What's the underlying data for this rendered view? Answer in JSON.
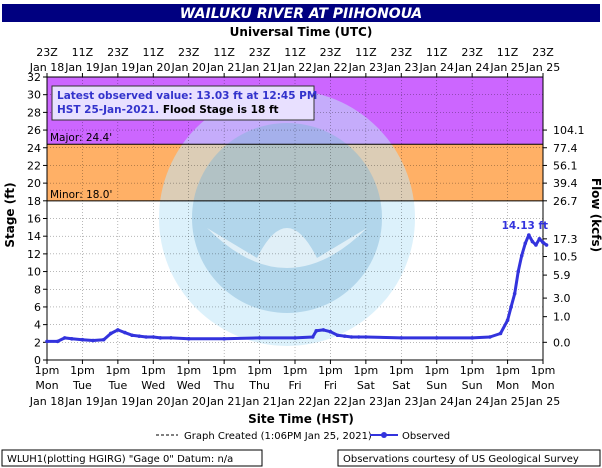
{
  "title": "WAILUKU RIVER AT PIIHONOUA",
  "top_axis_title": "Universal Time (UTC)",
  "bottom_axis_title": "Site Time (HST)",
  "left_axis_title": "Stage (ft)",
  "right_axis_title": "Flow (kcfs)",
  "info_box": {
    "line1": "Latest observed value: 13.03 ft at 12:45 PM",
    "line2_a": "HST 25-Jan-2021.",
    "line2_b": " Flood Stage is 18 ft"
  },
  "legend": {
    "created": "Graph Created (1:06PM Jan 25, 2021)",
    "observed": "Observed"
  },
  "footer": {
    "left": "WLUH1(plotting HGIRG) \"Gage 0\" Datum: n/a",
    "right": "Observations courtesy of US Geological Survey"
  },
  "thresholds": {
    "major_label": "Major: 24.4'",
    "minor_label": "Minor: 18.0'",
    "major": 24.4,
    "minor": 18.0
  },
  "peak_label": "14.13 ft",
  "colors": {
    "title_bg": "#000080",
    "major_band": "#cc66ff",
    "minor_band": "#ffb066",
    "observed": "#3333dd",
    "info_text": "#3333cc"
  },
  "chart_data": {
    "type": "line",
    "ylim": [
      0,
      32
    ],
    "yticks": [
      0,
      2,
      4,
      6,
      8,
      10,
      12,
      14,
      16,
      18,
      20,
      22,
      24,
      26,
      28,
      30,
      32
    ],
    "flow_ticks": [
      {
        "stage": 2.0,
        "label": "0.0"
      },
      {
        "stage": 4.9,
        "label": "1.0"
      },
      {
        "stage": 7.0,
        "label": "3.0"
      },
      {
        "stage": 9.6,
        "label": "5.9"
      },
      {
        "stage": 11.7,
        "label": "10.5"
      },
      {
        "stage": 13.7,
        "label": "17.3"
      },
      {
        "stage": 18.0,
        "label": "26.7"
      },
      {
        "stage": 20.0,
        "label": "39.4"
      },
      {
        "stage": 22.0,
        "label": "56.1"
      },
      {
        "stage": 24.0,
        "label": "77.4"
      },
      {
        "stage": 26.0,
        "label": "104.1"
      }
    ],
    "bottom_ticks": [
      {
        "line1": "1pm",
        "line2": "Mon",
        "line3": "Jan 18"
      },
      {
        "line1": "1pm",
        "line2": "Tue",
        "line3": "Jan 19"
      },
      {
        "line1": "1pm",
        "line2": "Tue",
        "line3": "Jan 19"
      },
      {
        "line1": "1pm",
        "line2": "Wed",
        "line3": "Jan 20"
      },
      {
        "line1": "1pm",
        "line2": "Wed",
        "line3": "Jan 20"
      },
      {
        "line1": "1pm",
        "line2": "Thu",
        "line3": "Jan 21"
      },
      {
        "line1": "1pm",
        "line2": "Thu",
        "line3": "Jan 21"
      },
      {
        "line1": "1pm",
        "line2": "Fri",
        "line3": "Jan 22"
      },
      {
        "line1": "1pm",
        "line2": "Fri",
        "line3": "Jan 22"
      },
      {
        "line1": "1pm",
        "line2": "Sat",
        "line3": "Jan 23"
      },
      {
        "line1": "1pm",
        "line2": "Sat",
        "line3": "Jan 23"
      },
      {
        "line1": "1pm",
        "line2": "Sun",
        "line3": "Jan 24"
      },
      {
        "line1": "1pm",
        "line2": "Sun",
        "line3": "Jan 24"
      },
      {
        "line1": "1pm",
        "line2": "Mon",
        "line3": "Jan 25"
      },
      {
        "line1": "1pm",
        "line2": "Mon",
        "line3": "Jan 25"
      }
    ],
    "top_ticks": [
      {
        "line1": "23Z",
        "line2": "Jan 18"
      },
      {
        "line1": "11Z",
        "line2": "Jan 19"
      },
      {
        "line1": "23Z",
        "line2": "Jan 19"
      },
      {
        "line1": "11Z",
        "line2": "Jan 20"
      },
      {
        "line1": "23Z",
        "line2": "Jan 20"
      },
      {
        "line1": "11Z",
        "line2": "Jan 21"
      },
      {
        "line1": "23Z",
        "line2": "Jan 21"
      },
      {
        "line1": "11Z",
        "line2": "Jan 22"
      },
      {
        "line1": "23Z",
        "line2": "Jan 22"
      },
      {
        "line1": "11Z",
        "line2": "Jan 23"
      },
      {
        "line1": "23Z",
        "line2": "Jan 23"
      },
      {
        "line1": "11Z",
        "line2": "Jan 24"
      },
      {
        "line1": "23Z",
        "line2": "Jan 24"
      },
      {
        "line1": "11Z",
        "line2": "Jan 25"
      },
      {
        "line1": "23Z",
        "line2": "Jan 25"
      }
    ],
    "series": [
      {
        "name": "Observed",
        "x": [
          0,
          0.3,
          0.5,
          0.7,
          1.0,
          1.3,
          1.6,
          1.8,
          2.0,
          2.2,
          2.4,
          2.6,
          2.8,
          3.0,
          3.2,
          3.5,
          4.0,
          5.0,
          6.0,
          7.0,
          7.5,
          7.6,
          7.8,
          8.0,
          8.2,
          8.4,
          8.6,
          8.8,
          9.0,
          10.0,
          11.0,
          12.0,
          12.5,
          12.8,
          13.0,
          13.1,
          13.2,
          13.3,
          13.4,
          13.5,
          13.6,
          13.7,
          13.8,
          13.9,
          14.0,
          14.1
        ],
        "y": [
          2.1,
          2.1,
          2.5,
          2.4,
          2.3,
          2.2,
          2.3,
          3.0,
          3.4,
          3.1,
          2.8,
          2.7,
          2.6,
          2.6,
          2.5,
          2.5,
          2.4,
          2.4,
          2.5,
          2.5,
          2.6,
          3.3,
          3.4,
          3.2,
          2.8,
          2.7,
          2.6,
          2.6,
          2.6,
          2.5,
          2.5,
          2.5,
          2.6,
          3.0,
          4.5,
          6.0,
          7.5,
          10.0,
          11.8,
          13.2,
          14.13,
          13.4,
          13.0,
          13.7,
          13.3,
          13.0
        ]
      }
    ]
  }
}
